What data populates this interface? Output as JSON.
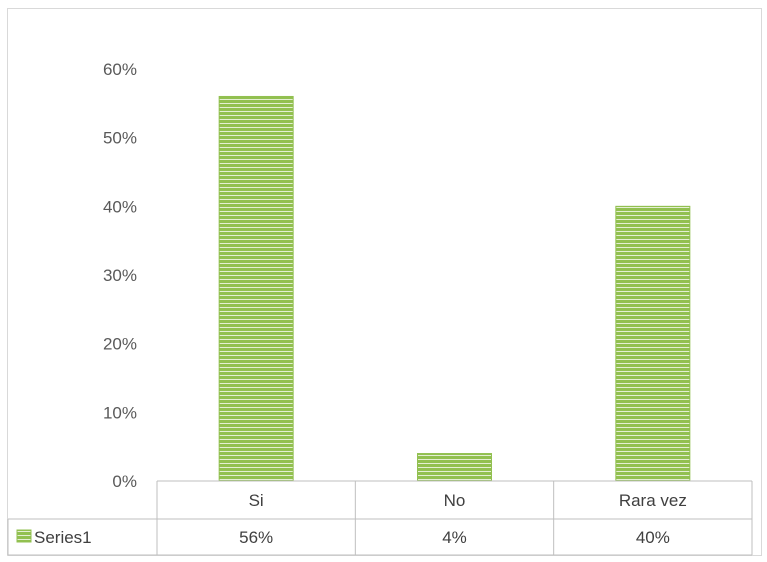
{
  "chart_data": {
    "type": "bar",
    "categories": [
      "Si",
      "No",
      "Rara vez"
    ],
    "series": [
      {
        "name": "Series1",
        "values": [
          56,
          4,
          40
        ],
        "labels": [
          "56%",
          "4%",
          "40%"
        ]
      }
    ],
    "ylim": [
      0,
      60
    ],
    "yticks": [
      0,
      10,
      20,
      30,
      40,
      50,
      60
    ],
    "ytick_labels": [
      "0%",
      "10%",
      "20%",
      "30%",
      "40%",
      "50%",
      "60%"
    ],
    "grid": false,
    "legend": "data table",
    "bar_color": "#92c050",
    "bar_stripe_color": "#ffffff"
  }
}
